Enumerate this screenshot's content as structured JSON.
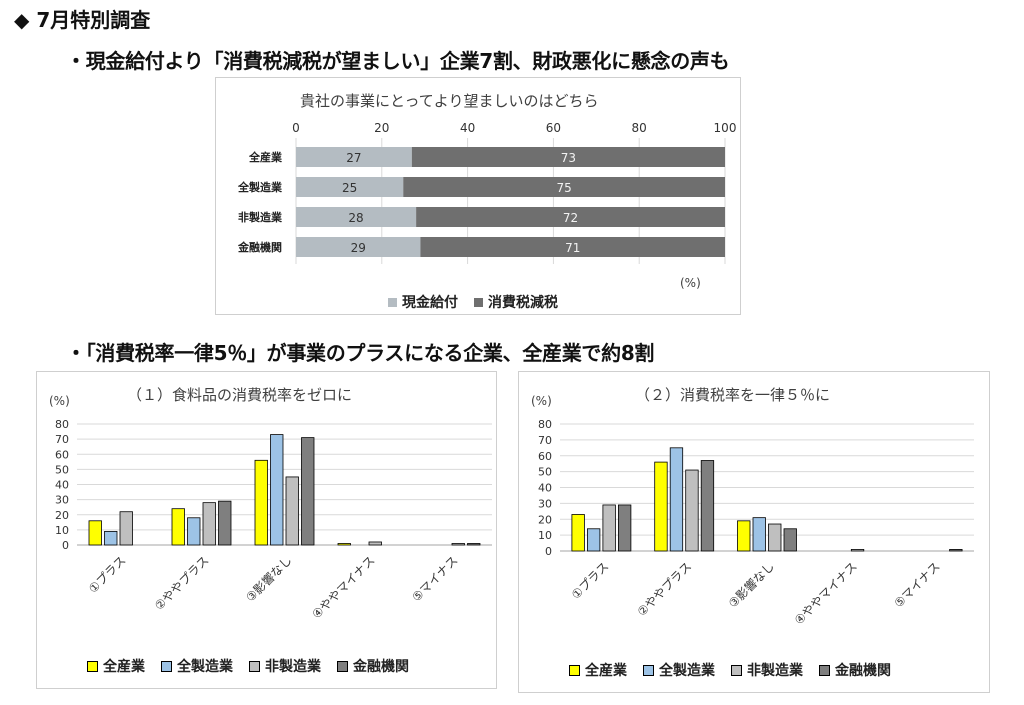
{
  "page": {
    "heading": "◆ 7月特別調査",
    "bullet1": "・現金給付より「消費税減税が望ましい」企業7割、財政悪化に懸念の声も",
    "bullet2": "・「消費税率一律5％」が事業のプラスになる企業、全産業で約8割"
  },
  "chart_data": [
    {
      "type": "bar",
      "orientation": "horizontal-stacked",
      "title": "貴社の事業にとってより望ましいのはどちら",
      "unit_label": "(%)",
      "categories": [
        "全産業",
        "全製造業",
        "非製造業",
        "金融機関"
      ],
      "series": [
        {
          "name": "現金給付",
          "values": [
            27,
            25,
            28,
            29
          ],
          "color": "#b4bcc2"
        },
        {
          "name": "消費税減税",
          "values": [
            73,
            75,
            72,
            71
          ],
          "color": "#6f6f6f"
        }
      ],
      "xticks": [
        0,
        20,
        40,
        60,
        80,
        100
      ],
      "xlim": [
        0,
        100
      ],
      "grid": true,
      "legend": "bottom"
    },
    {
      "type": "bar",
      "title": "（１）食料品の消費税率をゼロに",
      "unit_label": "(%)",
      "categories": [
        "①プラス",
        "②ややプラス",
        "③影響なし",
        "④ややマイナス",
        "⑤マイナス"
      ],
      "series": [
        {
          "name": "全産業",
          "values": [
            16,
            24,
            56,
            1,
            0
          ],
          "color": "#ffff00"
        },
        {
          "name": "全製造業",
          "values": [
            9,
            18,
            73,
            0,
            0
          ],
          "color": "#9dc3e6"
        },
        {
          "name": "非製造業",
          "values": [
            22,
            28,
            45,
            2,
            1
          ],
          "color": "#bfbfbf"
        },
        {
          "name": "金融機関",
          "values": [
            0,
            29,
            71,
            0,
            1
          ],
          "color": "#7f7f7f"
        }
      ],
      "yticks": [
        0,
        10,
        20,
        30,
        40,
        50,
        60,
        70,
        80
      ],
      "ylim": [
        0,
        80
      ],
      "grid": true,
      "legend": "bottom"
    },
    {
      "type": "bar",
      "title": "（２）消費税率を一律５％に",
      "unit_label": "(%)",
      "categories": [
        "①プラス",
        "②ややプラス",
        "③影響なし",
        "④ややマイナス",
        "⑤マイナス"
      ],
      "series": [
        {
          "name": "全産業",
          "values": [
            23,
            56,
            19,
            0,
            0
          ],
          "color": "#ffff00"
        },
        {
          "name": "全製造業",
          "values": [
            14,
            65,
            21,
            0,
            0
          ],
          "color": "#9dc3e6"
        },
        {
          "name": "非製造業",
          "values": [
            29,
            51,
            17,
            1,
            0
          ],
          "color": "#bfbfbf"
        },
        {
          "name": "金融機関",
          "values": [
            29,
            57,
            14,
            0,
            1
          ],
          "color": "#7f7f7f"
        }
      ],
      "yticks": [
        0,
        10,
        20,
        30,
        40,
        50,
        60,
        70,
        80
      ],
      "ylim": [
        0,
        80
      ],
      "grid": true,
      "legend": "bottom"
    }
  ]
}
